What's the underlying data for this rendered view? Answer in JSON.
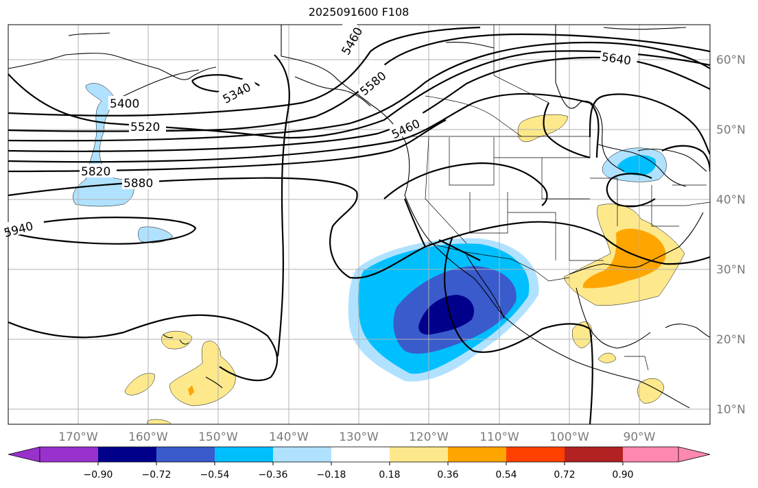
{
  "title": "2025091600 F108",
  "lat_labels": [
    "60°N",
    "50°N",
    "40°N",
    "30°N",
    "20°N",
    "10°N"
  ],
  "lon_labels": [
    "170°W",
    "160°W",
    "150°W",
    "140°W",
    "130°W",
    "120°W",
    "110°W",
    "100°W",
    "90°W"
  ],
  "contour_labels": [
    "5460",
    "5580",
    "5640",
    "5340",
    "5400",
    "5520",
    "5820",
    "5880",
    "5940",
    "5460"
  ],
  "colorbar": {
    "colors": [
      "#9932cc",
      "#00008b",
      "#3a5bcc",
      "#00bfff",
      "#b0e2ff",
      "#ffffff",
      "#fde98c",
      "#ffa500",
      "#ff4000",
      "#b22222",
      "#ff88b0"
    ],
    "ticks": [
      "−0.90",
      "−0.72",
      "−0.54",
      "−0.36",
      "−0.18",
      "0.18",
      "0.36",
      "0.54",
      "0.72",
      "0.90"
    ]
  },
  "chart_data": {
    "type": "heatmap",
    "title": "2025091600 F108",
    "field": "height contours (dam-style values) with shaded anomaly",
    "lon_range": [
      -180,
      -80
    ],
    "lat_range": [
      8,
      65
    ],
    "contour_levels": [
      5340,
      5400,
      5460,
      5520,
      5580,
      5640,
      5820,
      5880,
      5940
    ],
    "colorbar_levels": [
      -0.9,
      -0.72,
      -0.54,
      -0.36,
      -0.18,
      0.18,
      0.36,
      0.54,
      0.72,
      0.9
    ],
    "features": [
      {
        "name": "negative anomaly core",
        "center": [
          -116,
          25
        ],
        "min": -0.72
      },
      {
        "name": "negative anomaly Gulf of Alaska",
        "center": [
          -162,
          48
        ],
        "min": -0.36
      },
      {
        "name": "negative anomaly Great Lakes",
        "center": [
          -86,
          45
        ],
        "min": -0.54
      },
      {
        "name": "positive anomaly Gulf coast",
        "center": [
          -90,
          32
        ],
        "max": 0.54
      },
      {
        "name": "positive anomaly near Hawaii",
        "center": [
          -150,
          20
        ],
        "max": 0.54
      }
    ]
  }
}
